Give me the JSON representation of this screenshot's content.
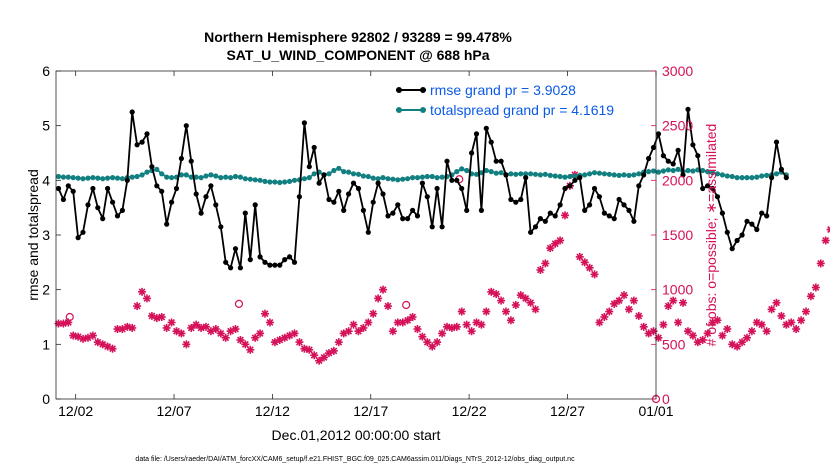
{
  "chart_data": {
    "type": "line",
    "title_line1": "Northern Hemisphere 92802 / 93289 = 99.478%",
    "title_line2": "SAT_U_WIND_COMPONENT @ 688 hPa",
    "xlabel": "Dec.01,2012 00:00:00 start",
    "ylabel_left": "rmse and totalspread",
    "ylabel_right": "# of obs: o=possible; ∗=assimilated",
    "footer": "data file: /Users/raeder/DAI/ATM_forcXX/CAM6_setup/f.e21.FHIST_BGC.f09_025.CAM6assim.011/Diags_NTrS_2012-12/obs_diag_output.nc",
    "xlim": [
      0.5,
      31.0
    ],
    "ylim_left": [
      0,
      6
    ],
    "ylim_right": [
      0,
      3000
    ],
    "x_ticks": [
      1.5,
      6.5,
      11.5,
      16.5,
      21.5,
      26.5,
      31.0
    ],
    "x_tick_labels": [
      "12/02",
      "12/07",
      "12/12",
      "12/17",
      "12/22",
      "12/27",
      "01/01"
    ],
    "y_left_ticks": [
      0,
      1,
      2,
      3,
      4,
      5,
      6
    ],
    "y_left_tick_labels": [
      "0",
      "1",
      "2",
      "3",
      "4",
      "5",
      "6"
    ],
    "y_right_ticks": [
      0,
      500,
      1000,
      1500,
      2000,
      2500,
      3000
    ],
    "y_right_tick_labels": [
      "0",
      "500",
      "1000",
      "1500",
      "2000",
      "2500",
      "3000"
    ],
    "colors": {
      "rmse": "#000000",
      "totalspread": "#128080",
      "obs": "#d41159",
      "legend_text": "#0a5ae6"
    },
    "series": [
      {
        "name": "rmse grand pr = 3.9028",
        "axis": "left",
        "x_start": 0.625,
        "x_step": 0.25,
        "values": [
          3.85,
          3.65,
          3.9,
          3.8,
          2.95,
          3.05,
          3.55,
          3.85,
          3.5,
          3.3,
          3.85,
          3.6,
          3.35,
          3.45,
          4.0,
          5.25,
          4.65,
          4.7,
          4.85,
          4.25,
          3.9,
          3.8,
          3.2,
          3.6,
          3.85,
          4.4,
          5.0,
          4.35,
          3.75,
          3.4,
          3.7,
          3.9,
          3.55,
          3.15,
          2.5,
          2.4,
          2.75,
          2.4,
          3.4,
          2.55,
          3.55,
          2.6,
          2.5,
          2.45,
          2.45,
          2.45,
          2.55,
          2.6,
          2.5,
          3.7,
          5.05,
          4.25,
          4.6,
          3.95,
          4.1,
          3.65,
          3.6,
          3.8,
          3.45,
          3.75,
          3.95,
          3.85,
          3.45,
          3.05,
          3.6,
          3.95,
          3.75,
          3.35,
          3.4,
          3.55,
          3.3,
          3.3,
          3.45,
          3.35,
          3.95,
          3.7,
          3.15,
          3.85,
          3.15,
          4.35,
          4.0,
          4.0,
          3.85,
          3.45,
          4.5,
          4.85,
          3.45,
          4.95,
          4.7,
          4.35,
          4.35,
          4.1,
          3.65,
          3.6,
          3.65,
          4.05,
          3.05,
          3.15,
          3.3,
          3.25,
          3.4,
          3.35,
          3.55,
          3.85,
          3.9,
          4.0,
          4.05,
          3.45,
          3.55,
          3.85,
          3.7,
          3.4,
          3.35,
          3.3,
          3.65,
          3.55,
          3.45,
          3.25,
          3.9,
          4.1,
          4.4,
          4.6,
          4.85,
          4.45,
          4.35,
          4.3,
          4.55,
          4.1,
          5.3,
          4.65,
          4.45,
          3.85,
          3.9,
          3.85,
          3.7,
          3.4,
          3.05,
          2.75,
          2.9,
          3.0,
          3.25,
          3.2,
          3.1,
          3.4,
          3.35,
          4.05,
          4.7,
          4.2,
          4.05
        ]
      },
      {
        "name": "totalspread grand pr = 4.1619",
        "axis": "left",
        "x_start": 0.625,
        "x_step": 0.25,
        "values": [
          4.07,
          4.06,
          4.06,
          4.05,
          4.04,
          4.03,
          4.04,
          4.05,
          4.04,
          4.03,
          4.04,
          4.05,
          4.04,
          4.03,
          4.05,
          4.06,
          4.07,
          4.1,
          4.15,
          4.18,
          4.2,
          4.12,
          4.06,
          4.05,
          4.06,
          4.1,
          4.1,
          4.06,
          4.06,
          4.05,
          4.08,
          4.1,
          4.08,
          4.05,
          4.06,
          4.05,
          4.07,
          4.06,
          4.03,
          4.02,
          4.01,
          4.0,
          3.98,
          3.97,
          3.97,
          3.96,
          3.97,
          3.98,
          4.0,
          4.01,
          4.03,
          4.05,
          4.12,
          4.15,
          4.1,
          4.12,
          4.18,
          4.22,
          4.16,
          4.15,
          4.12,
          4.11,
          4.08,
          4.07,
          4.04,
          4.03,
          4.05,
          4.03,
          4.02,
          4.01,
          4.02,
          4.03,
          4.05,
          4.05,
          4.06,
          4.07,
          4.07,
          4.05,
          4.06,
          4.07,
          4.1,
          4.16,
          4.21,
          4.18,
          4.12,
          4.11,
          4.14,
          4.18,
          4.16,
          4.13,
          4.14,
          4.1,
          4.12,
          4.11,
          4.12,
          4.12,
          4.12,
          4.11,
          4.1,
          4.11,
          4.09,
          4.08,
          4.07,
          4.06,
          4.07,
          4.08,
          4.09,
          4.1,
          4.12,
          4.14,
          4.13,
          4.12,
          4.11,
          4.1,
          4.09,
          4.1,
          4.09,
          4.1,
          4.12,
          4.15,
          4.16,
          4.17,
          4.15,
          4.17,
          4.19,
          4.18,
          4.2,
          4.16,
          4.18,
          4.17,
          4.19,
          4.18,
          4.16,
          4.14,
          4.12,
          4.1,
          4.08,
          4.07,
          4.05,
          4.05,
          4.05,
          4.05,
          4.06,
          4.08,
          4.09,
          4.1,
          4.12,
          4.15,
          4.1
        ]
      },
      {
        "name": "obs assimilated",
        "axis": "right",
        "marker": "asterisk",
        "x_start": 0.625,
        "x_step": 0.25,
        "values": [
          690,
          690,
          700,
          580,
          570,
          550,
          560,
          580,
          520,
          500,
          480,
          460,
          640,
          640,
          660,
          650,
          850,
          980,
          920,
          760,
          740,
          750,
          650,
          700,
          620,
          600,
          500,
          650,
          680,
          650,
          660,
          620,
          640,
          600,
          560,
          620,
          640,
          540,
          500,
          450,
          560,
          600,
          780,
          700,
          520,
          540,
          560,
          580,
          600,
          520,
          460,
          450,
          400,
          350,
          380,
          420,
          440,
          520,
          600,
          620,
          680,
          620,
          650,
          700,
          780,
          920,
          1000,
          850,
          620,
          700,
          700,
          720,
          750,
          640,
          570,
          520,
          480,
          520,
          600,
          660,
          650,
          660,
          800,
          680,
          620,
          700,
          680,
          800,
          980,
          960,
          900,
          800,
          720,
          860,
          950,
          920,
          880,
          820,
          1180,
          1240,
          1380,
          1420,
          1450,
          1680,
          1950,
          2050,
          1300,
          1250,
          1200,
          1140,
          700,
          750,
          800,
          870,
          900,
          950,
          820,
          900,
          760,
          660,
          600,
          620,
          560,
          680,
          850,
          900,
          700,
          880,
          620,
          580,
          520,
          540,
          600,
          700,
          720,
          580,
          640,
          500,
          480,
          520,
          560,
          620,
          700,
          680,
          620,
          820,
          880,
          760,
          680,
          700,
          640,
          720,
          800,
          940,
          1020,
          1240,
          1450,
          1550,
          1380,
          1400
        ]
      },
      {
        "name": "obs possible",
        "axis": "right",
        "marker": "circle",
        "points": [
          [
            1.2,
            750
          ],
          [
            9.8,
            870
          ],
          [
            18.3,
            860
          ],
          [
            21.0,
            2010
          ],
          [
            31.0,
            0
          ]
        ]
      }
    ]
  }
}
